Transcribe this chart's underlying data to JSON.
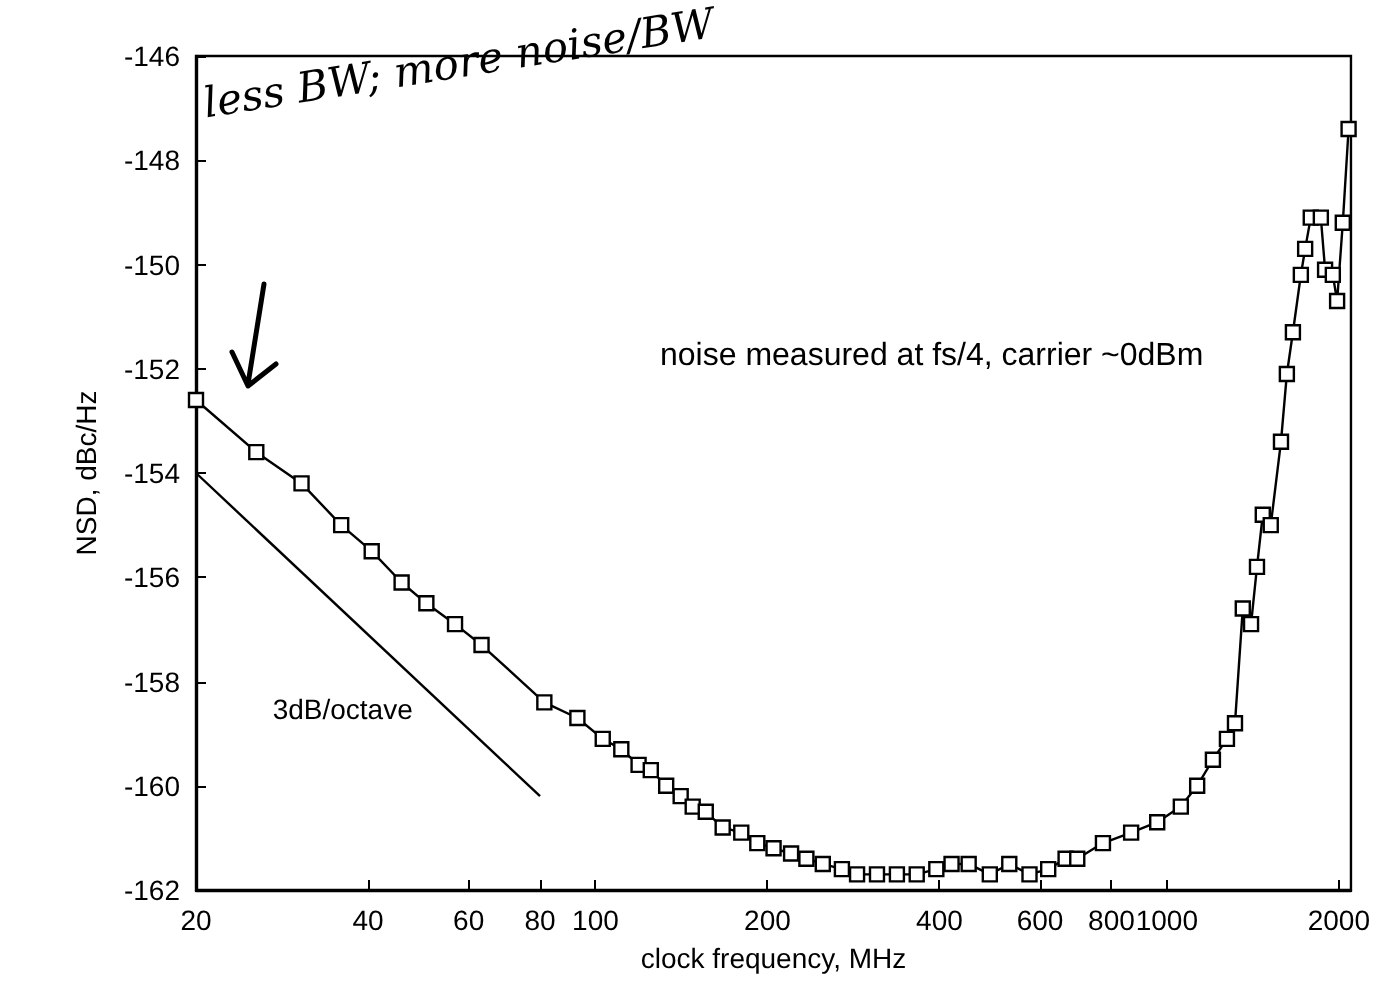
{
  "chart_data": {
    "type": "line",
    "xlabel": "clock frequency, MHz",
    "ylabel": "NSD, dBc/Hz",
    "log": "x",
    "xlim": [
      20,
      2100
    ],
    "ylim": [
      -162,
      -146
    ],
    "xticks": [
      20,
      40,
      60,
      80,
      100,
      200,
      400,
      600,
      800,
      1000,
      2000
    ],
    "yticks": [
      -162,
      -160,
      -158,
      -156,
      -154,
      -152,
      -150,
      -148,
      -146
    ],
    "grid": false,
    "legend": false,
    "line_style": "solid",
    "annotations": [
      "noise measured at fs/4, carrier ~0dBm",
      "less BW; more noise/BW"
    ],
    "series": [
      {
        "color": "#000000",
        "marker": "square",
        "x": [
          20,
          25.5,
          30.6,
          35.9,
          40.6,
          45.8,
          50.6,
          56.8,
          63.2,
          81.4,
          93,
          103,
          111,
          119,
          125,
          133,
          141,
          148,
          156,
          167,
          180,
          192,
          205,
          220,
          234,
          250,
          270,
          287,
          311,
          337,
          365,
          395,
          420,
          450,
          490,
          530,
          575,
          620,
          665,
          697,
          773,
          866,
          962,
          1058,
          1130,
          1204,
          1274,
          1316,
          1358,
          1404,
          1438,
          1472,
          1520,
          1584,
          1622,
          1662,
          1716,
          1746,
          1786,
          1860,
          1892,
          1952,
          1986,
          2032,
          2080
        ],
        "values": [
          -152.6,
          -153.6,
          -154.2,
          -155.0,
          -155.5,
          -156.1,
          -156.5,
          -156.9,
          -157.3,
          -158.4,
          -158.7,
          -159.1,
          -159.3,
          -159.6,
          -159.7,
          -160.0,
          -160.2,
          -160.4,
          -160.5,
          -160.8,
          -160.9,
          -161.1,
          -161.2,
          -161.3,
          -161.4,
          -161.5,
          -161.6,
          -161.7,
          -161.7,
          -161.7,
          -161.7,
          -161.6,
          -161.5,
          -161.5,
          -161.7,
          -161.5,
          -161.7,
          -161.6,
          -161.4,
          -161.4,
          -161.1,
          -160.9,
          -160.7,
          -160.4,
          -160.0,
          -159.5,
          -159.1,
          -158.8,
          -156.6,
          -156.9,
          -155.8,
          -154.8,
          -155.0,
          -153.4,
          -152.1,
          -151.3,
          -150.2,
          -149.7,
          -149.1,
          -149.1,
          -150.1,
          -150.2,
          -150.7,
          -149.2,
          -147.4
        ]
      },
      {
        "name": "3dB/octave",
        "color": "#000000",
        "marker": "none",
        "x": [
          20,
          80
        ],
        "values": [
          -154,
          -160.2
        ]
      }
    ]
  }
}
